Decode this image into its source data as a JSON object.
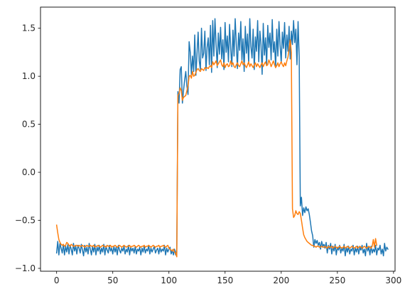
{
  "chart_data": {
    "type": "line",
    "title": "",
    "xlabel": "",
    "ylabel": "",
    "xlim": [
      -14.35,
      301.35
    ],
    "ylim": [
      -1.03,
      1.72
    ],
    "x_ticks": [
      0,
      50,
      100,
      150,
      200,
      250,
      300
    ],
    "x_tick_labels": [
      "0",
      "50",
      "100",
      "150",
      "200",
      "250",
      "300"
    ],
    "y_ticks": [
      -1.0,
      -0.5,
      0.0,
      0.5,
      1.0,
      1.5
    ],
    "y_tick_labels": [
      "−1.0",
      "−0.5",
      "0.0",
      "0.5",
      "1.0",
      "1.5"
    ],
    "grid": false,
    "legend": "none",
    "series": [
      {
        "color": "#1f77b4",
        "x_start": 0,
        "values": [
          -0.84,
          -0.72,
          -0.86,
          -0.74,
          -0.79,
          -0.84,
          -0.75,
          -0.86,
          -0.77,
          -0.83,
          -0.75,
          -0.85,
          -0.76,
          -0.8,
          -0.86,
          -0.74,
          -0.82,
          -0.77,
          -0.85,
          -0.76,
          -0.79,
          -0.84,
          -0.75,
          -0.81,
          -0.87,
          -0.76,
          -0.83,
          -0.78,
          -0.85,
          -0.74,
          -0.8,
          -0.86,
          -0.77,
          -0.83,
          -0.75,
          -0.86,
          -0.78,
          -0.82,
          -0.76,
          -0.85,
          -0.79,
          -0.83,
          -0.75,
          -0.86,
          -0.77,
          -0.81,
          -0.84,
          -0.76,
          -0.82,
          -0.79,
          -0.85,
          -0.77,
          -0.83,
          -0.78,
          -0.86,
          -0.76,
          -0.81,
          -0.84,
          -0.79,
          -0.82,
          -0.77,
          -0.85,
          -0.8,
          -0.83,
          -0.76,
          -0.86,
          -0.78,
          -0.82,
          -0.79,
          -0.84,
          -0.77,
          -0.85,
          -0.8,
          -0.82,
          -0.78,
          -0.86,
          -0.79,
          -0.83,
          -0.77,
          -0.84,
          -0.8,
          -0.82,
          -0.76,
          -0.85,
          -0.79,
          -0.83,
          -0.8,
          -0.77,
          -0.84,
          -0.81,
          -0.79,
          -0.85,
          -0.78,
          -0.83,
          -0.8,
          -0.82,
          -0.76,
          -0.86,
          -0.79,
          -0.83,
          -0.8,
          -0.78,
          -0.85,
          -0.81,
          -0.86,
          -0.8,
          -0.86,
          -0.8,
          0.84,
          0.72,
          1.07,
          1.1,
          0.72,
          0.85,
          0.96,
          1.05,
          0.9,
          0.81,
          1.36,
          1.25,
          1.02,
          1.21,
          1.05,
          1.43,
          1.01,
          1.23,
          1.46,
          1.16,
          1.07,
          1.5,
          1.19,
          1.24,
          1.47,
          1.06,
          1.3,
          1.4,
          1.12,
          1.53,
          1.04,
          1.58,
          1.21,
          1.6,
          1.33,
          1.09,
          1.45,
          1.23,
          1.51,
          1.18,
          1.38,
          1.07,
          1.56,
          1.25,
          1.42,
          1.15,
          1.54,
          1.29,
          1.1,
          1.48,
          1.21,
          1.6,
          1.33,
          1.08,
          1.45,
          1.27,
          1.57,
          1.17,
          1.39,
          1.05,
          1.52,
          1.24,
          1.44,
          1.13,
          1.6,
          1.31,
          1.19,
          1.49,
          1.07,
          1.41,
          1.26,
          1.58,
          1.15,
          1.47,
          1.33,
          1.02,
          1.55,
          1.22,
          1.4,
          1.11,
          1.53,
          1.3,
          1.45,
          1.17,
          1.59,
          1.25,
          1.36,
          1.09,
          1.49,
          1.21,
          1.57,
          1.32,
          1.14,
          1.46,
          1.29,
          1.56,
          1.19,
          1.43,
          1.26,
          1.52,
          1.18,
          1.47,
          1.33,
          1.58,
          1.35,
          1.49,
          1.12,
          1.57,
          1.2,
          -0.35,
          -0.26,
          -0.45,
          -0.37,
          -0.42,
          -0.36,
          -0.4,
          -0.38,
          -0.44,
          -0.52,
          -0.61,
          -0.66,
          -0.78,
          -0.7,
          -0.74,
          -0.71,
          -0.76,
          -0.73,
          -0.8,
          -0.72,
          -0.77,
          -0.75,
          -0.79,
          -0.73,
          -0.84,
          -0.76,
          -0.8,
          -0.74,
          -0.85,
          -0.77,
          -0.82,
          -0.75,
          -0.86,
          -0.78,
          -0.81,
          -0.76,
          -0.84,
          -0.79,
          -0.82,
          -0.75,
          -0.87,
          -0.78,
          -0.83,
          -0.77,
          -0.85,
          -0.8,
          -0.82,
          -0.76,
          -0.86,
          -0.79,
          -0.83,
          -0.77,
          -0.85,
          -0.78,
          -0.81,
          -0.76,
          -0.84,
          -0.8,
          -0.87,
          -0.74,
          -0.82,
          -0.78,
          -0.86,
          -0.77,
          -0.84,
          -0.8,
          -0.83,
          -0.76,
          -0.86,
          -0.79,
          -0.81,
          -0.76,
          -0.85,
          -0.8,
          -0.87,
          -0.74,
          -0.82,
          -0.78,
          -0.8
        ]
      },
      {
        "color": "#ff7f0e",
        "x_start": 0,
        "values": [
          -0.55,
          -0.63,
          -0.7,
          -0.73,
          -0.75,
          -0.76,
          -0.75,
          -0.77,
          -0.76,
          -0.73,
          -0.74,
          -0.76,
          -0.77,
          -0.75,
          -0.76,
          -0.77,
          -0.77,
          -0.76,
          -0.76,
          -0.77,
          -0.76,
          -0.77,
          -0.77,
          -0.76,
          -0.77,
          -0.78,
          -0.77,
          -0.76,
          -0.77,
          -0.77,
          -0.76,
          -0.77,
          -0.77,
          -0.76,
          -0.78,
          -0.77,
          -0.77,
          -0.76,
          -0.77,
          -0.78,
          -0.77,
          -0.76,
          -0.77,
          -0.77,
          -0.78,
          -0.76,
          -0.77,
          -0.77,
          -0.76,
          -0.78,
          -0.77,
          -0.77,
          -0.76,
          -0.77,
          -0.78,
          -0.77,
          -0.76,
          -0.77,
          -0.78,
          -0.77,
          -0.76,
          -0.77,
          -0.78,
          -0.77,
          -0.77,
          -0.76,
          -0.78,
          -0.77,
          -0.77,
          -0.76,
          -0.77,
          -0.78,
          -0.77,
          -0.76,
          -0.77,
          -0.78,
          -0.77,
          -0.77,
          -0.76,
          -0.78,
          -0.77,
          -0.77,
          -0.76,
          -0.77,
          -0.78,
          -0.77,
          -0.76,
          -0.77,
          -0.78,
          -0.77,
          -0.77,
          -0.76,
          -0.78,
          -0.77,
          -0.77,
          -0.76,
          -0.77,
          -0.78,
          -0.77,
          -0.76,
          -0.79,
          -0.8,
          -0.81,
          -0.82,
          -0.8,
          -0.83,
          -0.84,
          -0.88,
          0.8,
          0.82,
          0.88,
          0.85,
          0.75,
          0.78,
          0.79,
          0.8,
          0.85,
          0.9,
          1.0,
          1.01,
          0.98,
          1.05,
          1.0,
          1.01,
          1.04,
          1.07,
          1.08,
          1.06,
          1.05,
          1.08,
          1.07,
          1.06,
          1.09,
          1.08,
          1.09,
          1.08,
          1.1,
          1.11,
          1.09,
          1.15,
          1.12,
          1.14,
          1.16,
          1.11,
          1.13,
          1.15,
          1.17,
          1.12,
          1.1,
          1.14,
          1.09,
          1.12,
          1.13,
          1.1,
          1.11,
          1.16,
          1.12,
          1.14,
          1.1,
          1.09,
          1.12,
          1.14,
          1.11,
          1.1,
          1.13,
          1.16,
          1.12,
          1.14,
          1.11,
          1.09,
          1.12,
          1.15,
          1.1,
          1.13,
          1.11,
          1.09,
          1.12,
          1.14,
          1.1,
          1.13,
          1.11,
          1.09,
          1.12,
          1.14,
          1.1,
          1.13,
          1.15,
          1.11,
          1.12,
          1.17,
          1.14,
          1.1,
          1.13,
          1.16,
          1.12,
          1.09,
          1.11,
          1.14,
          1.1,
          1.13,
          1.15,
          1.12,
          1.1,
          1.14,
          1.11,
          1.16,
          1.2,
          1.28,
          1.38,
          1.25,
          -0.38,
          -0.47,
          -0.45,
          -0.4,
          -0.43,
          -0.44,
          -0.41,
          -0.43,
          -0.5,
          -0.58,
          -0.65,
          -0.68,
          -0.7,
          -0.72,
          -0.73,
          -0.74,
          -0.75,
          -0.76,
          -0.76,
          -0.77,
          -0.77,
          -0.78,
          -0.77,
          -0.77,
          -0.78,
          -0.78,
          -0.77,
          -0.78,
          -0.78,
          -0.77,
          -0.78,
          -0.79,
          -0.77,
          -0.78,
          -0.78,
          -0.77,
          -0.79,
          -0.78,
          -0.77,
          -0.78,
          -0.79,
          -0.78,
          -0.77,
          -0.78,
          -0.79,
          -0.78,
          -0.77,
          -0.79,
          -0.78,
          -0.77,
          -0.78,
          -0.79,
          -0.78,
          -0.77,
          -0.78,
          -0.79,
          -0.78,
          -0.77,
          -0.79,
          -0.78,
          -0.77,
          -0.78,
          -0.79,
          -0.78,
          -0.77,
          -0.78,
          -0.79,
          -0.78,
          -0.77,
          -0.78,
          -0.79,
          -0.77,
          -0.7,
          -0.78,
          -0.69,
          -0.76
        ]
      }
    ]
  }
}
